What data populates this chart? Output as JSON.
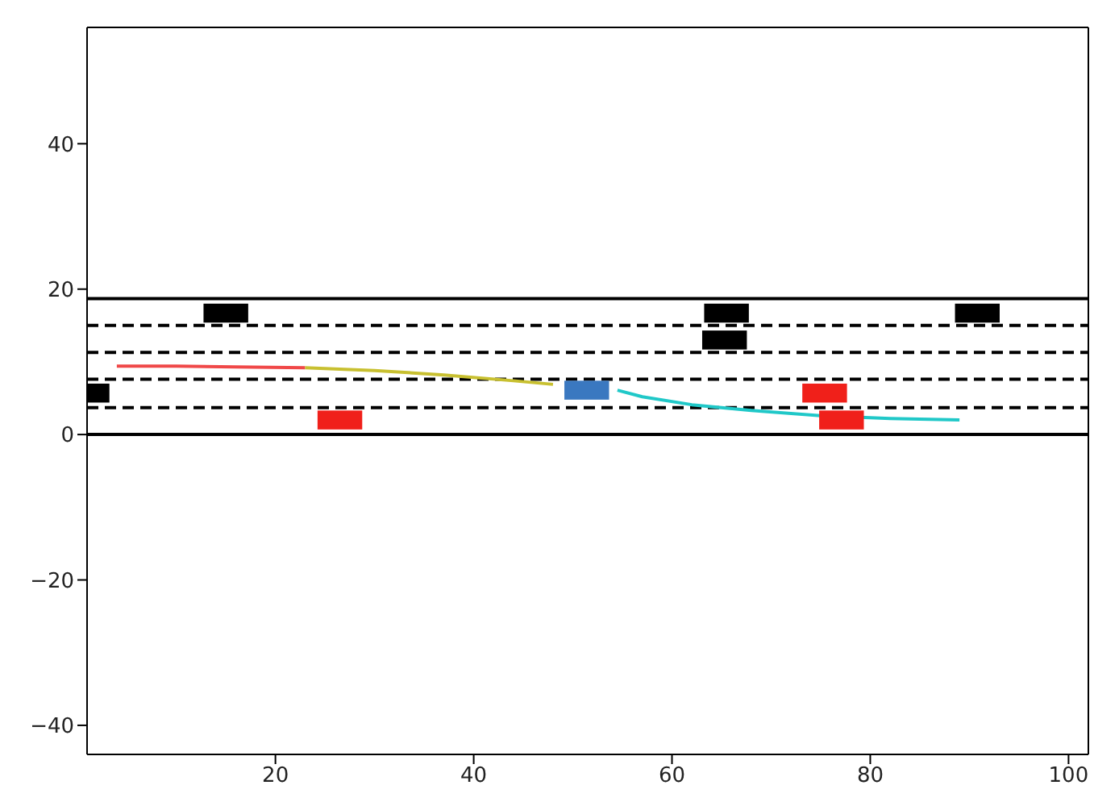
{
  "chart_data": {
    "type": "line",
    "xlim": [
      1,
      102
    ],
    "xticks": [
      20,
      40,
      60,
      80,
      100
    ],
    "ylim": [
      -44,
      56
    ],
    "yticks": [
      -40,
      -20,
      0,
      20,
      40
    ],
    "marker": "none",
    "line_style": "solid",
    "series": [
      {
        "color": "#f04848",
        "x": [
          4,
          10,
          16,
          23
        ],
        "values": [
          9.4,
          9.4,
          9.3,
          9.2
        ]
      },
      {
        "color": "#c8c030",
        "x": [
          23,
          30,
          37,
          44,
          48
        ],
        "values": [
          9.2,
          8.8,
          8.2,
          7.4,
          6.9
        ]
      },
      {
        "color": "#20c8c8",
        "x": [
          54.5,
          57,
          62,
          68,
          75,
          82,
          89
        ],
        "values": [
          6.1,
          5.2,
          4.1,
          3.3,
          2.6,
          2.2,
          2.0
        ]
      },
      {
        "type": "scatter",
        "marker": "square",
        "x": [
          15.0,
          65.5,
          65.3,
          90.8,
          1,
          26.5,
          75.4,
          77.1,
          51.4
        ],
        "values": [
          16.7,
          16.7,
          13.0,
          16.7,
          5.7,
          2.0,
          5.7,
          2.0,
          6.1
        ],
        "colors": [
          "#000000",
          "#000000",
          "#000000",
          "#000000",
          "#000000",
          "#f0201a",
          "#f0201a",
          "#f0201a",
          "#3a78c0"
        ]
      }
    ],
    "ref_lines": [
      {
        "axis": "y",
        "value": 0,
        "color": "#000000",
        "line_style": "solid"
      },
      {
        "axis": "y",
        "value": 3.7,
        "color": "#000000",
        "line_style": "dashed"
      },
      {
        "axis": "y",
        "value": 7.6,
        "color": "#000000",
        "line_style": "dashed"
      },
      {
        "axis": "y",
        "value": 11.3,
        "color": "#000000",
        "line_style": "dashed"
      },
      {
        "axis": "y",
        "value": 15.0,
        "color": "#000000",
        "line_style": "dashed"
      },
      {
        "axis": "y",
        "value": 18.7,
        "color": "#000000",
        "line_style": "solid"
      }
    ]
  }
}
